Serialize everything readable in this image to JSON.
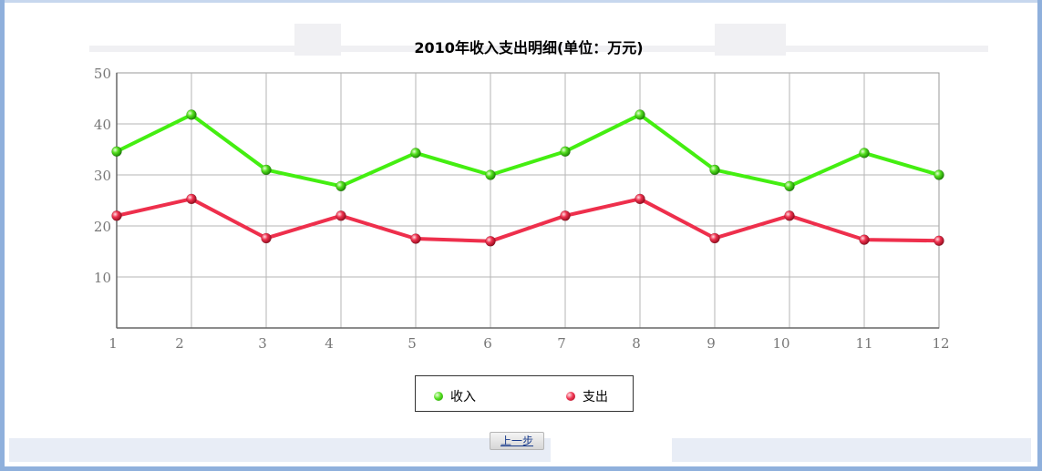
{
  "chart_data": {
    "type": "line",
    "title": "2010年收入支出明细(单位：万元)",
    "categories": [
      "1",
      "2",
      "3",
      "4",
      "5",
      "6",
      "7",
      "8",
      "9",
      "10",
      "11",
      "12"
    ],
    "y_ticks": [
      "10",
      "20",
      "30",
      "40",
      "50"
    ],
    "ylim": [
      0,
      50
    ],
    "grid": true,
    "legend_position": "bottom-center",
    "series": [
      {
        "name": "收入",
        "color": "#44ee11",
        "values": [
          34.6,
          41.8,
          31.0,
          27.8,
          34.3,
          30.0,
          34.6,
          41.8,
          31.0,
          27.8,
          34.3,
          30.0
        ]
      },
      {
        "name": "支出",
        "color": "#ee2f4c",
        "values": [
          22.0,
          25.3,
          17.6,
          22.0,
          17.5,
          17.0,
          22.0,
          25.3,
          17.6,
          22.0,
          17.3,
          17.1
        ]
      }
    ]
  },
  "legend": {
    "income_label": "收入",
    "expense_label": "支出"
  },
  "buttons": {
    "prev_label": "上一步"
  }
}
